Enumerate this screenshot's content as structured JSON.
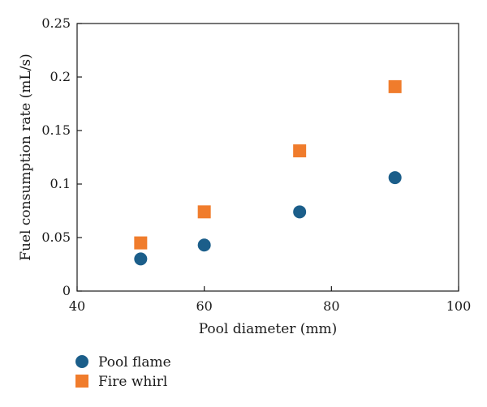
{
  "chart_data": {
    "type": "scatter",
    "xlabel": "Pool diameter (mm)",
    "ylabel": "Fuel consumption rate (mL/s)",
    "xlim": [
      40,
      100
    ],
    "ylim": [
      0,
      0.25
    ],
    "xticks": [
      40,
      60,
      80,
      100
    ],
    "yticks": [
      0,
      0.05,
      0.1,
      0.15,
      0.2,
      0.25
    ],
    "ytick_labels": [
      "0",
      "0.05",
      "0.1",
      "0.15",
      "0.2",
      "0.25"
    ],
    "grid": false,
    "legend_position": "bottom-left, outside plot",
    "series": [
      {
        "name": "Pool flame",
        "marker": "circle",
        "color": "#1b5e8a",
        "x": [
          50,
          60,
          75,
          90
        ],
        "y": [
          0.03,
          0.043,
          0.074,
          0.106
        ]
      },
      {
        "name": "Fire whirl",
        "marker": "square",
        "color": "#f07c2c",
        "x": [
          50,
          60,
          75,
          90
        ],
        "y": [
          0.045,
          0.074,
          0.131,
          0.191
        ]
      }
    ]
  }
}
